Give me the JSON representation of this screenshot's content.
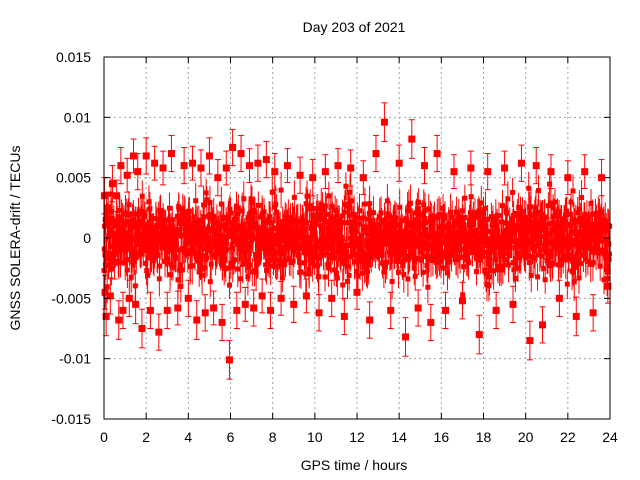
{
  "chart_data": {
    "type": "scatter",
    "title": "Day 203 of 2021",
    "xlabel": "GPS time / hours",
    "ylabel": "GNSS SOLERA-drift / TECUs",
    "xlim": [
      0,
      24
    ],
    "ylim": [
      -0.015,
      0.015
    ],
    "x_ticks": [
      0,
      2,
      4,
      6,
      8,
      10,
      12,
      14,
      16,
      18,
      20,
      22,
      24
    ],
    "y_ticks": [
      -0.015,
      -0.01,
      -0.005,
      0,
      0.005,
      0.01,
      0.015
    ],
    "x_tick_labels": [
      "0",
      "2",
      "4",
      "6",
      "8",
      "10",
      "12",
      "14",
      "16",
      "18",
      "20",
      "22",
      "24"
    ],
    "y_tick_labels": [
      "-0.015",
      "-0.01",
      "-0.005",
      "0",
      "0.005",
      "0.01",
      "0.015"
    ],
    "grid": true,
    "legend": "none",
    "series_color": "#ff0000",
    "error_bars": true,
    "points": [
      [
        0.02,
        0.0035,
        0.0015
      ],
      [
        0.05,
        -0.0045,
        0.0014
      ],
      [
        0.1,
        -0.0065,
        0.0016
      ],
      [
        0.2,
        0.0025,
        0.0013
      ],
      [
        0.3,
        -0.0048,
        0.0015
      ],
      [
        0.4,
        0.0045,
        0.0015
      ],
      [
        0.5,
        -0.002,
        0.0014
      ],
      [
        0.6,
        0.0035,
        0.0013
      ],
      [
        0.7,
        -0.0068,
        0.0016
      ],
      [
        0.8,
        0.006,
        0.0015
      ],
      [
        0.9,
        -0.006,
        0.0015
      ],
      [
        1.1,
        0.0052,
        0.0014
      ],
      [
        1.2,
        -0.005,
        0.0015
      ],
      [
        1.4,
        0.0068,
        0.0014
      ],
      [
        1.5,
        -0.0055,
        0.0016
      ],
      [
        1.6,
        0.0055,
        0.0015
      ],
      [
        1.8,
        -0.0075,
        0.0016
      ],
      [
        2.0,
        0.0068,
        0.0015
      ],
      [
        2.2,
        -0.006,
        0.0015
      ],
      [
        2.4,
        0.0062,
        0.0014
      ],
      [
        2.6,
        -0.0078,
        0.0015
      ],
      [
        2.8,
        0.0058,
        0.0014
      ],
      [
        3.0,
        -0.006,
        0.0015
      ],
      [
        3.2,
        0.007,
        0.0015
      ],
      [
        3.5,
        -0.0058,
        0.0014
      ],
      [
        3.8,
        0.006,
        0.0015
      ],
      [
        4.0,
        -0.005,
        0.0015
      ],
      [
        4.2,
        0.0062,
        0.0014
      ],
      [
        4.4,
        -0.0068,
        0.0016
      ],
      [
        4.6,
        0.0058,
        0.0015
      ],
      [
        4.8,
        -0.0062,
        0.0015
      ],
      [
        5.0,
        0.0068,
        0.0015
      ],
      [
        5.2,
        -0.0058,
        0.0014
      ],
      [
        5.4,
        0.005,
        0.0015
      ],
      [
        5.6,
        -0.007,
        0.0015
      ],
      [
        5.8,
        0.0058,
        0.0014
      ],
      [
        5.95,
        -0.0101,
        0.0016
      ],
      [
        6.1,
        0.0075,
        0.0015
      ],
      [
        6.3,
        -0.006,
        0.0015
      ],
      [
        6.5,
        0.007,
        0.0015
      ],
      [
        6.7,
        -0.0055,
        0.0014
      ],
      [
        6.9,
        0.006,
        0.0014
      ],
      [
        7.1,
        -0.0058,
        0.0015
      ],
      [
        7.3,
        0.0062,
        0.0015
      ],
      [
        7.5,
        -0.0048,
        0.0014
      ],
      [
        7.7,
        0.0065,
        0.0015
      ],
      [
        7.9,
        -0.006,
        0.0015
      ],
      [
        8.1,
        0.0055,
        0.0015
      ],
      [
        8.4,
        -0.005,
        0.0014
      ],
      [
        8.7,
        0.006,
        0.0014
      ],
      [
        9.0,
        -0.0055,
        0.0015
      ],
      [
        9.3,
        0.0052,
        0.0015
      ],
      [
        9.6,
        -0.0048,
        0.0014
      ],
      [
        9.9,
        0.005,
        0.0015
      ],
      [
        10.2,
        -0.0062,
        0.0015
      ],
      [
        10.5,
        0.0055,
        0.0014
      ],
      [
        10.8,
        -0.005,
        0.0015
      ],
      [
        11.1,
        0.006,
        0.0014
      ],
      [
        11.4,
        -0.0065,
        0.0015
      ],
      [
        11.7,
        0.0058,
        0.0015
      ],
      [
        12.0,
        -0.0045,
        0.0014
      ],
      [
        12.3,
        0.005,
        0.0014
      ],
      [
        12.6,
        -0.0068,
        0.0015
      ],
      [
        12.9,
        0.007,
        0.0015
      ],
      [
        13.3,
        0.0096,
        0.0016
      ],
      [
        13.6,
        -0.006,
        0.0015
      ],
      [
        14.0,
        0.0062,
        0.0015
      ],
      [
        14.3,
        -0.0082,
        0.0016
      ],
      [
        14.6,
        0.0082,
        0.0016
      ],
      [
        14.9,
        -0.0058,
        0.0015
      ],
      [
        15.2,
        0.006,
        0.0015
      ],
      [
        15.5,
        -0.007,
        0.0015
      ],
      [
        15.8,
        0.007,
        0.0015
      ],
      [
        16.2,
        -0.006,
        0.0015
      ],
      [
        16.6,
        0.0055,
        0.0014
      ],
      [
        17.0,
        -0.0052,
        0.0015
      ],
      [
        17.4,
        0.0058,
        0.0014
      ],
      [
        17.8,
        -0.008,
        0.0016
      ],
      [
        18.2,
        0.0055,
        0.0015
      ],
      [
        18.6,
        -0.006,
        0.0015
      ],
      [
        19.0,
        0.0058,
        0.0014
      ],
      [
        19.4,
        -0.0055,
        0.0015
      ],
      [
        19.8,
        0.0062,
        0.0015
      ],
      [
        20.2,
        -0.0085,
        0.0016
      ],
      [
        20.5,
        0.006,
        0.0015
      ],
      [
        20.8,
        -0.0072,
        0.0015
      ],
      [
        21.2,
        0.0055,
        0.0014
      ],
      [
        21.6,
        -0.005,
        0.0015
      ],
      [
        22.0,
        0.005,
        0.0014
      ],
      [
        22.4,
        -0.0065,
        0.0016
      ],
      [
        22.8,
        0.0055,
        0.0014
      ],
      [
        23.2,
        -0.0062,
        0.0015
      ],
      [
        23.6,
        0.005,
        0.0015
      ],
      [
        23.9,
        -0.004,
        0.0014
      ]
    ]
  }
}
